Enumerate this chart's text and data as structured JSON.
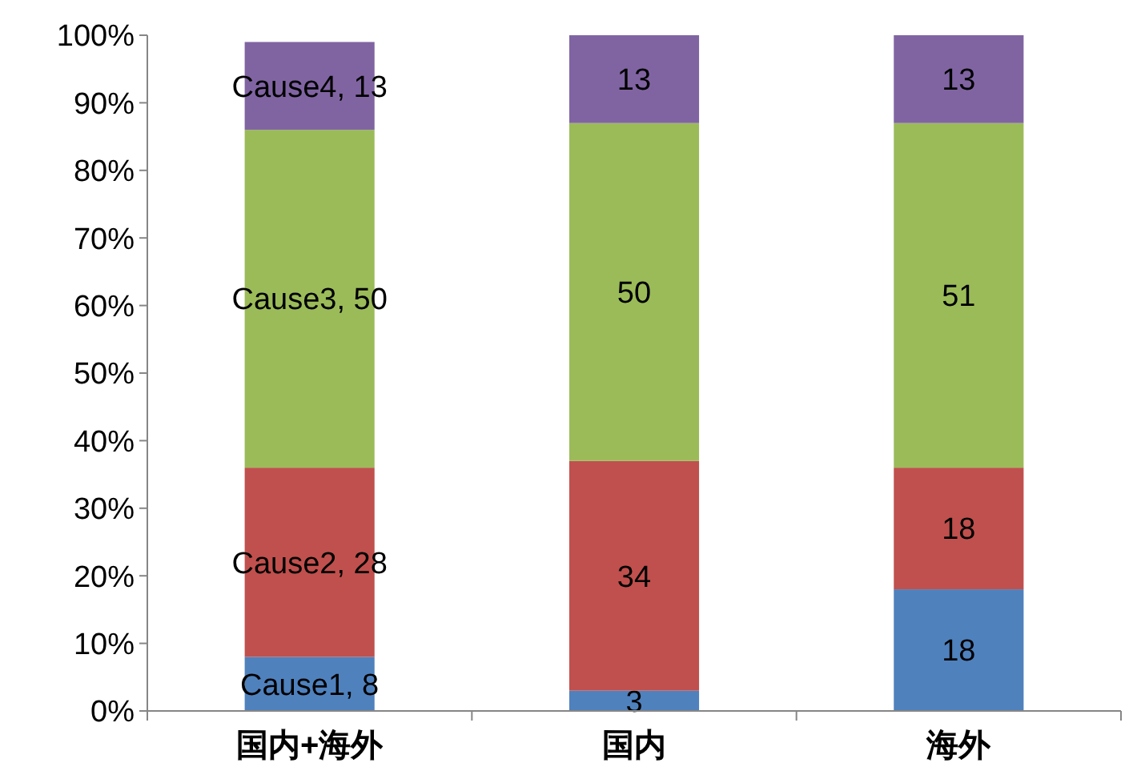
{
  "chart_data": {
    "type": "bar",
    "stacked": true,
    "categories": [
      "国内+海外",
      "国内",
      "海外"
    ],
    "series": [
      {
        "color": "#4f81bd",
        "values": [
          8,
          3,
          18
        ],
        "value_labels": [
          "Cause1, 8",
          "3",
          "18"
        ]
      },
      {
        "color": "#c0504d",
        "values": [
          28,
          34,
          18
        ],
        "value_labels": [
          "Cause2, 28",
          "34",
          "18"
        ]
      },
      {
        "color": "#9bbb59",
        "values": [
          50,
          50,
          51
        ],
        "value_labels": [
          "Cause3, 50",
          "50",
          "51"
        ]
      },
      {
        "color": "#8064a2",
        "values": [
          13,
          13,
          13
        ],
        "value_labels": [
          "Cause4, 13",
          "13",
          "13"
        ]
      }
    ],
    "ylim": [
      0,
      100
    ],
    "yticks": [
      {
        "value": 0,
        "label": "0%"
      },
      {
        "value": 10,
        "label": "10%"
      },
      {
        "value": 20,
        "label": "20%"
      },
      {
        "value": 30,
        "label": "30%"
      },
      {
        "value": 40,
        "label": "40%"
      },
      {
        "value": 50,
        "label": "50%"
      },
      {
        "value": 60,
        "label": "60%"
      },
      {
        "value": 70,
        "label": "70%"
      },
      {
        "value": 80,
        "label": "80%"
      },
      {
        "value": 90,
        "label": "90%"
      },
      {
        "value": 100,
        "label": "100%"
      }
    ]
  }
}
